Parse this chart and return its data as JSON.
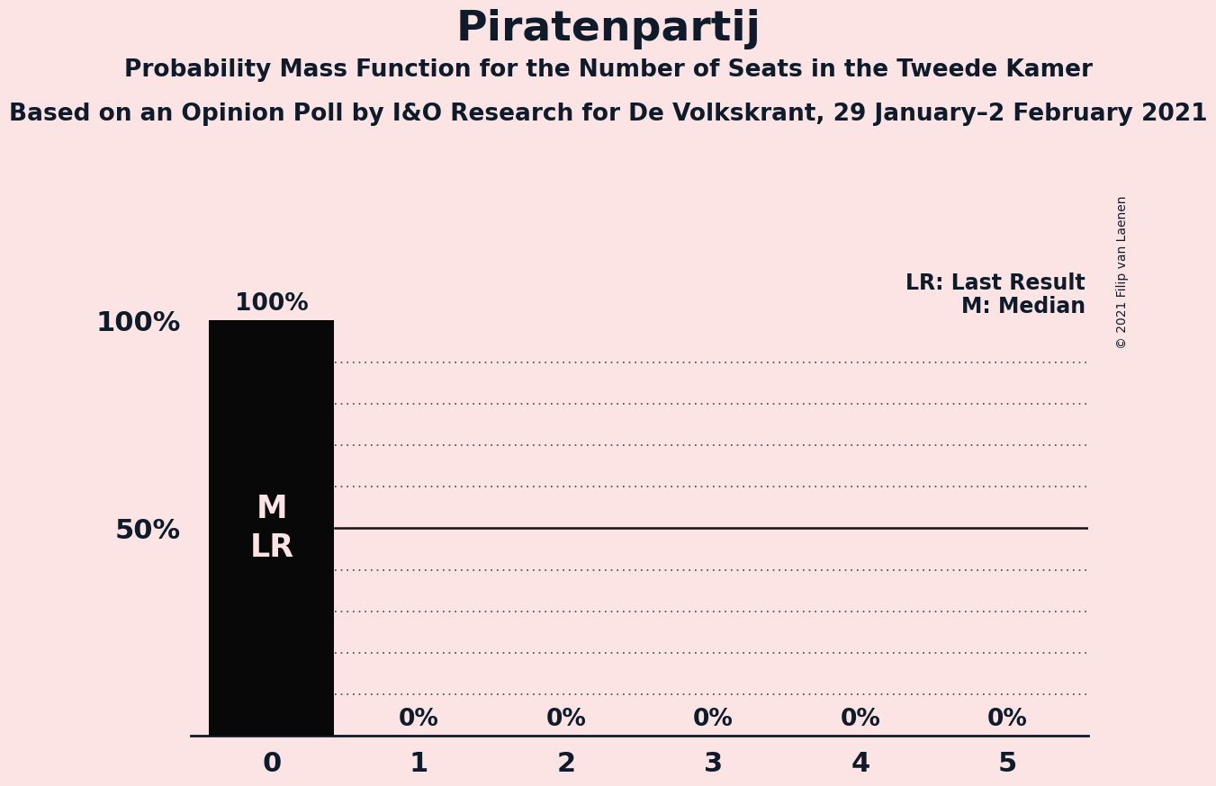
{
  "title": "Piratenpartij",
  "subtitle1": "Probability Mass Function for the Number of Seats in the Tweede Kamer",
  "subtitle2": "Based on an Opinion Poll by I&O Research for De Volkskrant, 29 January–2 February 2021",
  "copyright": "© 2021 Filip van Laenen",
  "background_color": "#fce4e4",
  "bar_color": "#080808",
  "bar_values": [
    1.0,
    0.0,
    0.0,
    0.0,
    0.0,
    0.0
  ],
  "bar_labels": [
    "100%",
    "0%",
    "0%",
    "0%",
    "0%",
    "0%"
  ],
  "x_ticks": [
    0,
    1,
    2,
    3,
    4,
    5
  ],
  "y_ticks": [
    0.1,
    0.2,
    0.3,
    0.4,
    0.5,
    0.6,
    0.7,
    0.8,
    0.9
  ],
  "legend_lr_label": "LR: Last Result",
  "legend_m_label": "M: Median",
  "solid_line_y": 0.5,
  "dotted_line_color": "#444444",
  "solid_line_color": "#111111",
  "text_color": "#0d1b2a",
  "bar_text_color": "#fce4e4",
  "title_fontsize": 34,
  "subtitle1_fontsize": 19,
  "subtitle2_fontsize": 19,
  "axis_label_fontsize": 22,
  "bar_label_fontsize": 19,
  "legend_fontsize": 17,
  "bar_annotation_fontsize": 25,
  "copyright_fontsize": 10,
  "ylim": [
    0,
    1.12
  ],
  "xlim": [
    -0.55,
    5.55
  ]
}
